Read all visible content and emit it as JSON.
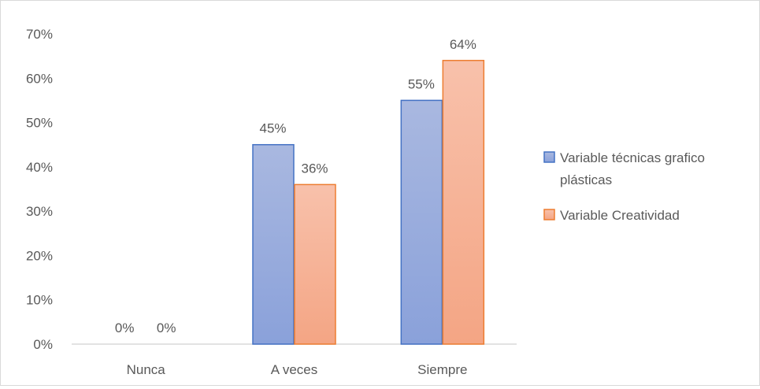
{
  "chart_data": {
    "type": "bar",
    "categories": [
      "Nunca",
      "A veces",
      "Siempre"
    ],
    "series": [
      {
        "name": "Variable técnicas grafico plásticas",
        "name_lines": [
          "Variable técnicas grafico",
          "plásticas"
        ],
        "values": [
          0,
          45,
          55
        ],
        "labels": [
          "0%",
          "45%",
          "55%"
        ],
        "color_top": "#a9b8e0",
        "color_bottom": "#8aa1da",
        "stroke": "#4472c4"
      },
      {
        "name": "Variable Creatividad",
        "name_lines": [
          "Variable Creatividad"
        ],
        "values": [
          0,
          36,
          64
        ],
        "labels": [
          "0%",
          "36%",
          "64%"
        ],
        "color_top": "#f8c1ab",
        "color_bottom": "#f4a584",
        "stroke": "#ed7d31"
      }
    ],
    "ylim": [
      0,
      70
    ],
    "yticks": [
      0,
      10,
      20,
      30,
      40,
      50,
      60,
      70
    ],
    "ytick_labels": [
      "0%",
      "10%",
      "20%",
      "30%",
      "40%",
      "50%",
      "60%",
      "70%"
    ],
    "title": "",
    "xlabel": "",
    "ylabel": "",
    "grid": false,
    "legend_position": "right",
    "axis_color": "#d9d9d9",
    "text_color": "#595959"
  }
}
